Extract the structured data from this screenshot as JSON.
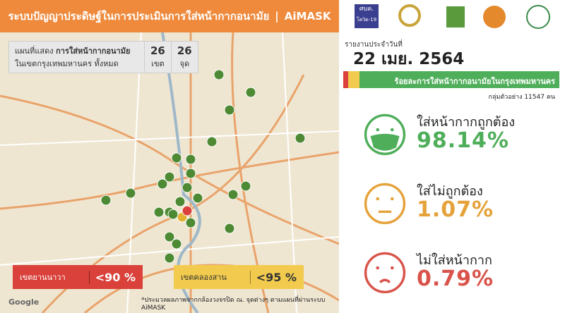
{
  "header": {
    "title": "ระบบปัญญาประดิษฐ์ในการประเมินการใส่หน้ากากอนามัย",
    "brand": "AiMASK",
    "logo_text": [
      "ศบค.",
      "โควิด-19"
    ]
  },
  "map": {
    "legend": {
      "prefix": "แผนที่แสดง",
      "bold": "การใส่หน้ากากอนามัย",
      "line2": "ในเขตกรุงเทพมหานคร ทั้งหมด"
    },
    "counts": [
      {
        "value": "26",
        "unit": "เขต"
      },
      {
        "value": "26",
        "unit": "จุด"
      }
    ],
    "alerts": [
      {
        "label": "เขตยานนาวา",
        "threshold": "<90 %"
      },
      {
        "label": "เขตคลองสาน",
        "threshold": "<95 %"
      }
    ],
    "footnote": "*ประมวลผลภาพจากกล้องวงจรปิด ณ. จุดต่างๆ ตามแผนที่ผ่านระบบ AiMASK",
    "attribution": "Google"
  },
  "report": {
    "date_label": "รายงานประจำวันที่",
    "date": "22 เมย. 2564",
    "subtitle": "ร้อยละการใส่หน้ากากอนามัยในกรุงเทพมหานคร",
    "sample": "กลุ่มตัวอย่าง 11547 คน",
    "stats": [
      {
        "label": "ใส่หน้ากากถูกต้อง",
        "value": "98.14%"
      },
      {
        "label": "ใส่ไม่ถูกต้อง",
        "value": "1.07%"
      },
      {
        "label": "ไม่ใส่หน้ากาก",
        "value": "0.79%"
      }
    ]
  }
}
